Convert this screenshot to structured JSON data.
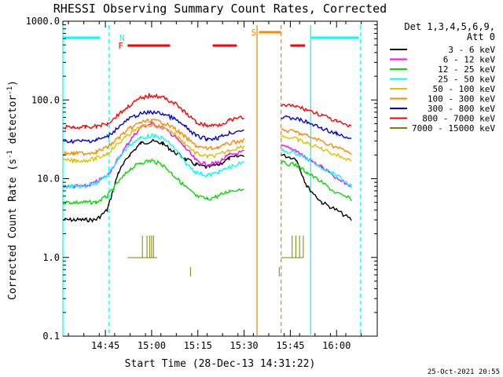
{
  "chart_data": {
    "type": "line",
    "title": "RHESSI Observing Summary Count Rates, Corrected",
    "xlabel": "Start Time (28-Dec-13 14:31:22)",
    "ylabel_main": "Corrected Count Rate (s",
    "ylabel_sup1": "-1",
    "ylabel_mid": " detector",
    "ylabel_sup2": "-1",
    "ylabel_end": ")",
    "y_scale": "log",
    "ylim": [
      0.1,
      1000
    ],
    "xlim": [
      14.52,
      16.22
    ],
    "y_ticks": [
      {
        "value": 0.1,
        "label": "0.1"
      },
      {
        "value": 1,
        "label": "1.0"
      },
      {
        "value": 10,
        "label": "10.0"
      },
      {
        "value": 100,
        "label": "100.0"
      },
      {
        "value": 1000,
        "label": "1000.0"
      }
    ],
    "x_ticks": [
      {
        "value": 14.75,
        "label": "14:45"
      },
      {
        "value": 15.0,
        "label": "15:00"
      },
      {
        "value": 15.25,
        "label": "15:15"
      },
      {
        "value": 15.5,
        "label": "15:30"
      },
      {
        "value": 15.75,
        "label": "15:45"
      },
      {
        "value": 16.0,
        "label": "16:00"
      }
    ],
    "legend_header": [
      "Det 1,3,4,5,6,9,",
      "Att 0"
    ],
    "legend_position": "right",
    "footer": "25-Oct-2021 20:55",
    "gap": [
      15.55,
      15.68
    ],
    "series": [
      {
        "name": "3 - 6 keV",
        "color": "#000000",
        "values": [
          3,
          3,
          3,
          3,
          4,
          12,
          20,
          28,
          30,
          28,
          22,
          18,
          15,
          14,
          15,
          18,
          20,
          null,
          null,
          null,
          20,
          18,
          8,
          5,
          4,
          3
        ]
      },
      {
        "name": "6 - 12 keV",
        "color": "#ff00ff",
        "values": [
          8,
          8,
          8,
          9,
          11,
          18,
          30,
          45,
          50,
          45,
          35,
          25,
          17,
          15,
          16,
          20,
          22,
          null,
          null,
          null,
          26,
          23,
          18,
          14,
          10,
          8
        ]
      },
      {
        "name": "12 - 25 keV",
        "color": "#00dd00",
        "values": [
          5,
          5,
          5,
          5,
          6,
          9,
          13,
          16,
          17,
          15,
          11,
          8,
          6,
          5.5,
          6,
          7,
          7.5,
          null,
          null,
          null,
          16,
          15,
          12,
          9,
          6.5,
          5.5
        ]
      },
      {
        "name": "25 - 50 keV",
        "color": "#00ffff",
        "values": [
          8,
          8,
          8,
          9,
          11,
          18,
          27,
          33,
          35,
          33,
          25,
          16,
          12,
          11,
          12,
          14,
          16,
          null,
          null,
          null,
          23,
          21,
          18,
          14,
          11,
          8
        ]
      },
      {
        "name": "50 - 100 keV",
        "color": "#e0c000",
        "values": [
          17,
          17,
          17,
          18,
          21,
          28,
          37,
          45,
          48,
          45,
          38,
          28,
          21,
          19,
          20,
          23,
          26,
          null,
          null,
          null,
          35,
          32,
          28,
          24,
          20,
          17
        ]
      },
      {
        "name": "100 - 300 keV",
        "color": "#ff8800",
        "values": [
          21,
          21,
          21,
          22,
          25,
          33,
          43,
          52,
          55,
          52,
          44,
          34,
          26,
          24,
          25,
          28,
          31,
          null,
          null,
          null,
          42,
          39,
          35,
          30,
          25,
          21
        ]
      },
      {
        "name": "300 - 800 keV",
        "color": "#0000dd",
        "values": [
          30,
          30,
          30,
          31,
          34,
          45,
          58,
          67,
          70,
          67,
          58,
          46,
          35,
          32,
          33,
          38,
          42,
          null,
          null,
          null,
          60,
          58,
          52,
          44,
          37,
          31
        ]
      },
      {
        "name": "800 - 7000 keV",
        "color": "#ff0000",
        "values": [
          45,
          45,
          45,
          46,
          50,
          65,
          85,
          105,
          115,
          108,
          92,
          70,
          52,
          47,
          48,
          55,
          60,
          null,
          null,
          null,
          85,
          83,
          75,
          64,
          53,
          45
        ]
      },
      {
        "name": "7000 - 15000 keV",
        "color": "#808000",
        "values": []
      }
    ],
    "series_x": [
      14.52,
      14.58,
      14.64,
      14.7,
      14.76,
      14.82,
      14.88,
      14.94,
      15.0,
      15.06,
      15.12,
      15.18,
      15.24,
      15.3,
      15.36,
      15.42,
      15.5,
      15.55,
      15.6,
      15.65,
      15.7,
      15.78,
      15.84,
      15.92,
      16.0,
      16.08
    ],
    "flags": [
      {
        "label": "N",
        "color": "#00ffff",
        "segments": [
          [
            14.52,
            14.72
          ],
          [
            15.86,
            16.12
          ]
        ]
      },
      {
        "label": "F",
        "color": "#ff0000",
        "segments": [
          [
            14.87,
            15.1
          ],
          [
            15.33,
            15.46
          ],
          [
            15.75,
            15.83
          ]
        ]
      },
      {
        "label": "S",
        "color": "#ff8800",
        "segments": [
          [
            15.58,
            15.7
          ]
        ]
      }
    ],
    "vlines": [
      {
        "x": 14.52,
        "color": "#00ffff",
        "style": "solid"
      },
      {
        "x": 14.77,
        "color": "#00ffff",
        "style": "dashed"
      },
      {
        "x": 15.57,
        "color": "#ff8800",
        "style": "solid"
      },
      {
        "x": 15.7,
        "color": "#ff8800",
        "style": "dashed"
      },
      {
        "x": 15.86,
        "color": "#00ffff",
        "style": "solid"
      },
      {
        "x": 16.13,
        "color": "#00ffff",
        "style": "dashed"
      }
    ]
  }
}
